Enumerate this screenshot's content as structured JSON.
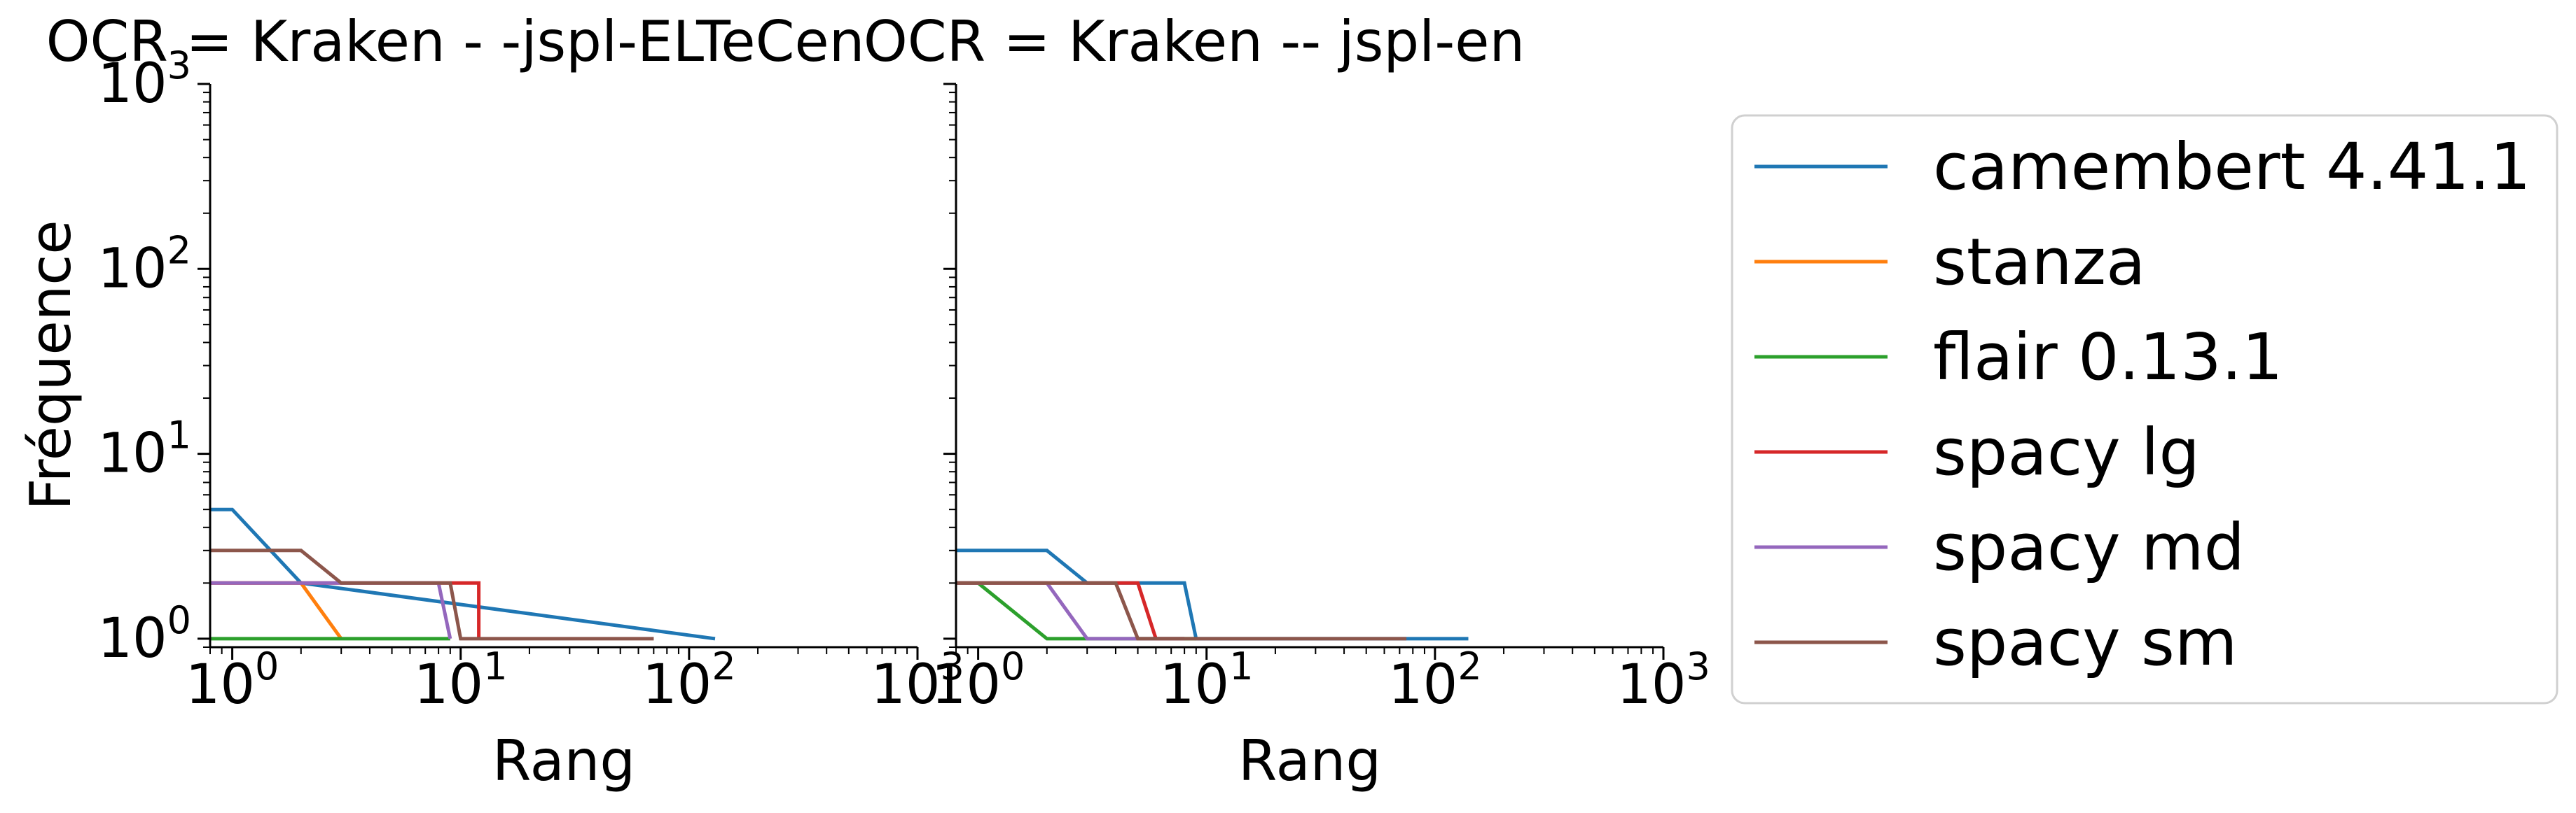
{
  "chart_data": {
    "type": "line",
    "shared_ylabel": "Fréquence",
    "xscale": "log",
    "yscale": "log",
    "xlim": [
      0.8,
      1000
    ],
    "ylim": [
      0.9,
      1000
    ],
    "grid": false,
    "legend_placement": "outside-right",
    "legend": [
      {
        "name": "camembert 4.41.1",
        "color": "#1f77b4"
      },
      {
        "name": "stanza",
        "color": "#ff7f0e"
      },
      {
        "name": "flair 0.13.1",
        "color": "#2ca02c"
      },
      {
        "name": "spacy lg",
        "color": "#d62728"
      },
      {
        "name": "spacy md",
        "color": "#9467bd"
      },
      {
        "name": "spacy sm",
        "color": "#8c564b"
      }
    ],
    "x_ticks": [
      {
        "base": "10",
        "exp": "0"
      },
      {
        "base": "10",
        "exp": "1"
      },
      {
        "base": "10",
        "exp": "2"
      },
      {
        "base": "10",
        "exp": "3"
      }
    ],
    "y_ticks": [
      {
        "base": "10",
        "exp": "0"
      },
      {
        "base": "10",
        "exp": "1"
      },
      {
        "base": "10",
        "exp": "2"
      },
      {
        "base": "10",
        "exp": "3"
      }
    ],
    "panels": [
      {
        "title": "OCR = Kraken - -jspl-ELTeCen",
        "xlabel": "Rang",
        "series": [
          {
            "name": "camembert 4.41.1",
            "x": [
              0.8,
              1,
              2,
              130
            ],
            "y": [
              5,
              5,
              2,
              1
            ]
          },
          {
            "name": "stanza",
            "x": [
              0.8,
              2,
              3
            ],
            "y": [
              2,
              2,
              1
            ]
          },
          {
            "name": "flair 0.13.1",
            "x": [
              0.8,
              9
            ],
            "y": [
              1,
              1
            ]
          },
          {
            "name": "spacy lg",
            "x": [
              0.8,
              11,
              12,
              12
            ],
            "y": [
              2,
              2,
              2,
              1
            ]
          },
          {
            "name": "spacy md",
            "x": [
              0.8,
              8,
              9
            ],
            "y": [
              2,
              2,
              1
            ]
          },
          {
            "name": "spacy sm",
            "x": [
              0.8,
              2,
              3,
              9,
              10,
              70
            ],
            "y": [
              3,
              3,
              2,
              2,
              1,
              1
            ]
          }
        ]
      },
      {
        "title": "OCR = Kraken -- jspl-en",
        "xlabel": "Rang",
        "series": [
          {
            "name": "camembert 4.41.1",
            "x": [
              0.8,
              2,
              3,
              8,
              9,
              140
            ],
            "y": [
              3,
              3,
              2,
              2,
              1,
              1
            ]
          },
          {
            "name": "stanza",
            "x": [
              0.8,
              2
            ],
            "y": [
              2,
              2
            ]
          },
          {
            "name": "flair 0.13.1",
            "x": [
              0.8,
              1,
              2,
              9
            ],
            "y": [
              2,
              2,
              1,
              1
            ]
          },
          {
            "name": "spacy lg",
            "x": [
              0.8,
              5,
              6,
              8
            ],
            "y": [
              2,
              2,
              1,
              1
            ]
          },
          {
            "name": "spacy md",
            "x": [
              0.8,
              2,
              3,
              8
            ],
            "y": [
              2,
              2,
              1,
              1
            ]
          },
          {
            "name": "spacy sm",
            "x": [
              0.8,
              4,
              5,
              75
            ],
            "y": [
              2,
              2,
              1,
              1
            ]
          }
        ]
      }
    ]
  }
}
